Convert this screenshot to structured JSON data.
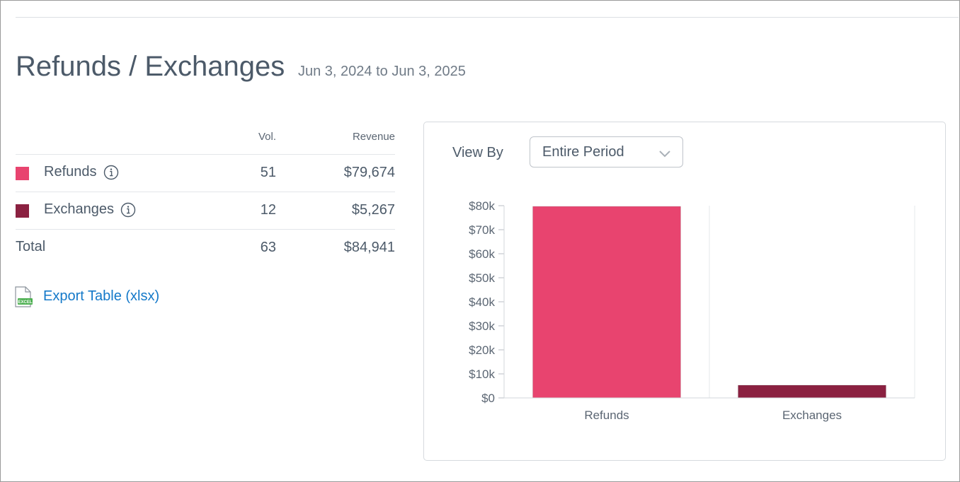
{
  "header": {
    "title": "Refunds / Exchanges",
    "date_range": "Jun 3, 2024 to Jun 3, 2025"
  },
  "summary_table": {
    "columns": {
      "volume": "Vol.",
      "revenue": "Revenue"
    },
    "rows": [
      {
        "label": "Refunds",
        "volume": "51",
        "revenue": "$79,674",
        "color": "#e8446f",
        "info_icon": "info-icon"
      },
      {
        "label": "Exchanges",
        "volume": "12",
        "revenue": "$5,267",
        "color": "#8b2141",
        "info_icon": "info-icon"
      }
    ],
    "total": {
      "label": "Total",
      "volume": "63",
      "revenue": "$84,941"
    }
  },
  "export": {
    "label": "Export Table (xlsx)",
    "icon": "excel-file-icon",
    "icon_text": "EXCEL"
  },
  "chart_panel": {
    "view_by_label": "View By",
    "view_by_value": "Entire Period"
  },
  "chart_data": {
    "type": "bar",
    "categories": [
      "Refunds",
      "Exchanges"
    ],
    "values": [
      79674,
      5267
    ],
    "colors": [
      "#e8446f",
      "#8b2141"
    ],
    "y_ticks": [
      0,
      10000,
      20000,
      30000,
      40000,
      50000,
      60000,
      70000,
      80000
    ],
    "y_tick_labels": [
      "$0",
      "$10k",
      "$20k",
      "$30k",
      "$40k",
      "$50k",
      "$60k",
      "$70k",
      "$80k"
    ],
    "ylim": [
      0,
      80000
    ],
    "grid": "vertical",
    "legend": "none"
  }
}
